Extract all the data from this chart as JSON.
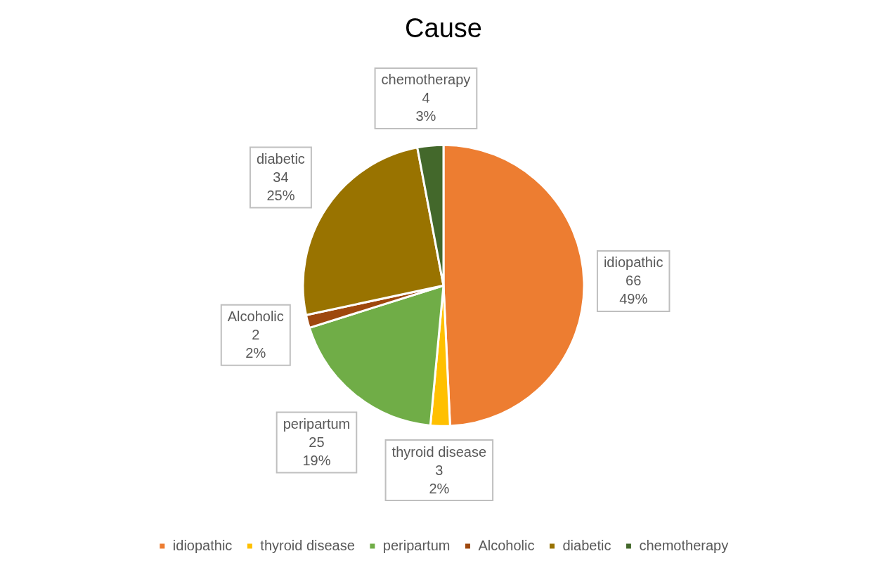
{
  "chart_data": {
    "type": "pie",
    "title": "Cause",
    "categories": [
      "idiopathic",
      "thyroid disease",
      "peripartum",
      "Alcoholic",
      "diabetic",
      "chemotherapy"
    ],
    "values": [
      66,
      3,
      25,
      2,
      34,
      4
    ],
    "colors": [
      "#ed7d31",
      "#ffc000",
      "#70ad47",
      "#9e480e",
      "#997300",
      "#43682b"
    ],
    "value_labels": [
      "66\n49%",
      "3\n2%",
      "25\n19%",
      "2\n2%",
      "34\n25%",
      "4\n3%"
    ],
    "legend": "bottom"
  }
}
